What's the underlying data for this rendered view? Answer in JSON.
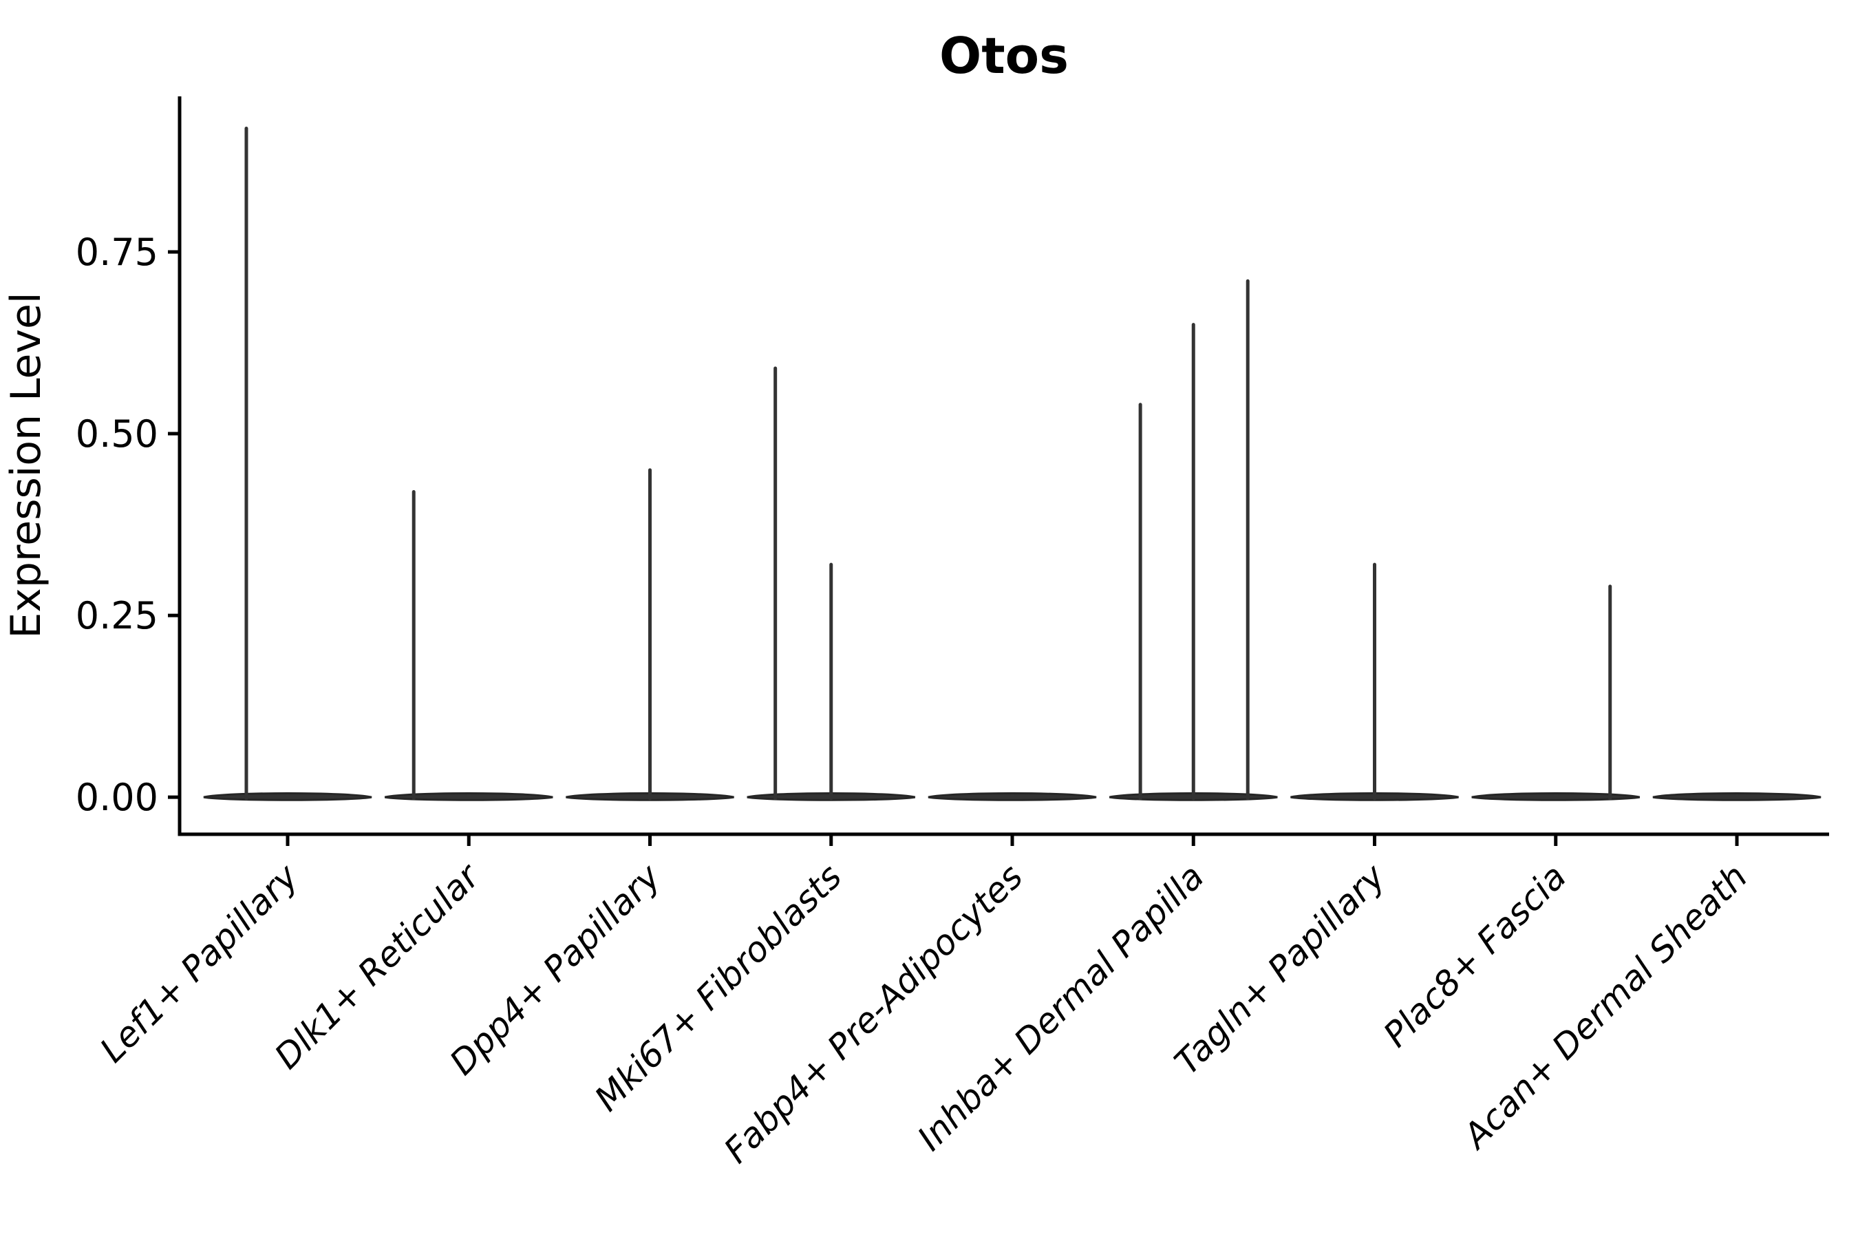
{
  "chart_data": {
    "type": "violin",
    "title": "Otos",
    "ylabel": "Expression Level",
    "xlabel": "",
    "grid": false,
    "legend_position": "none",
    "yticks_labels": [
      "0.00",
      "0.25",
      "0.50",
      "0.75"
    ],
    "ytick_values": [
      0,
      0.25,
      0.5,
      0.75
    ],
    "ylim": [
      -0.051,
      0.964
    ],
    "categories": [
      "Lef1+ Papillary",
      "Dlk1+ Reticular",
      "Dpp4+ Papillary",
      "Mki67+ Fibroblasts",
      "Fabp4+ Pre-Adipocytes",
      "Inhba+ Dermal Papilla",
      "Tagln+ Papillary",
      "Plac8+ Fascia",
      "Acan+ Dermal Sheath"
    ],
    "violins": [
      {
        "category": "Lef1+ Papillary",
        "zero_density_body": true,
        "spikes": [
          {
            "offset_frac": -0.228,
            "value": 0.92
          }
        ]
      },
      {
        "category": "Dlk1+ Reticular",
        "zero_density_body": true,
        "spikes": [
          {
            "offset_frac": -0.304,
            "value": 0.42
          }
        ]
      },
      {
        "category": "Dpp4+ Papillary",
        "zero_density_body": true,
        "spikes": [
          {
            "offset_frac": 0.0,
            "value": 0.45
          }
        ]
      },
      {
        "category": "Mki67+ Fibroblasts",
        "zero_density_body": true,
        "spikes": [
          {
            "offset_frac": -0.308,
            "value": 0.59
          },
          {
            "offset_frac": 0.0,
            "value": 0.32
          }
        ]
      },
      {
        "category": "Fabp4+ Pre-Adipocytes",
        "zero_density_body": true,
        "spikes": []
      },
      {
        "category": "Inhba+ Dermal Papilla",
        "zero_density_body": true,
        "spikes": [
          {
            "offset_frac": -0.293,
            "value": 0.54
          },
          {
            "offset_frac": 0.0,
            "value": 0.65
          },
          {
            "offset_frac": 0.3,
            "value": 0.71
          }
        ]
      },
      {
        "category": "Tagln+ Papillary",
        "zero_density_body": true,
        "spikes": [
          {
            "offset_frac": 0.0,
            "value": 0.32
          }
        ]
      },
      {
        "category": "Plac8+ Fascia",
        "zero_density_body": true,
        "spikes": [
          {
            "offset_frac": 0.3,
            "value": 0.29
          }
        ]
      },
      {
        "category": "Acan+ Dermal Sheath",
        "zero_density_body": true,
        "spikes": []
      }
    ],
    "colors": {
      "violin": "#333333",
      "violin_edge": "#262626",
      "axis": "#000000",
      "text": "#000000",
      "background": "#ffffff"
    }
  }
}
